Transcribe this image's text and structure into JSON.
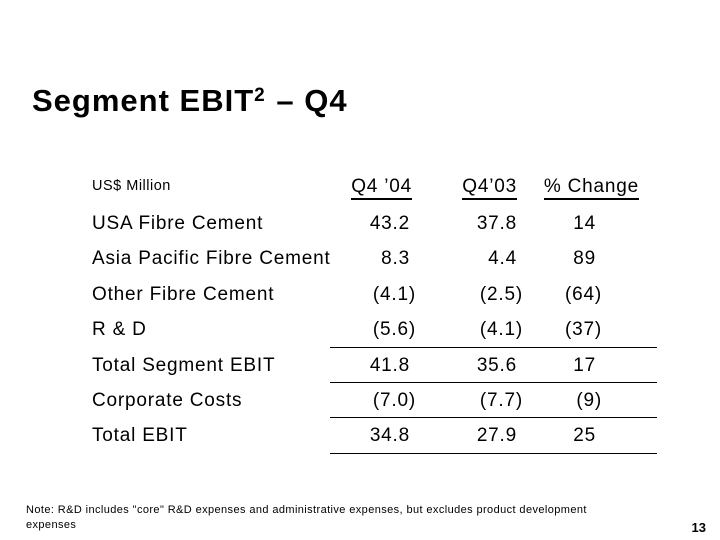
{
  "slide": {
    "title": {
      "prefix": "Segment EBIT",
      "superscript": "2",
      "suffix": "– Q4"
    },
    "table": {
      "unit_label": "US$ Million",
      "col_headers": {
        "q4_04": "Q4 ’04",
        "q4_03": "Q4’03",
        "pct_change": "% Change"
      },
      "rows": [
        {
          "label": "USA Fibre Cement",
          "q4_04": "43.2",
          "q4_03": "37.8",
          "pct_change": "14"
        },
        {
          "label": "Asia Pacific Fibre Cement",
          "q4_04": "8.3",
          "q4_03": "4.4",
          "pct_change": "89"
        },
        {
          "label": "Other Fibre Cement",
          "q4_04": "(4.1)",
          "q4_03": "(2.5)",
          "pct_change": "(64)"
        },
        {
          "label": "R & D",
          "q4_04": "(5.6)",
          "q4_03": "(4.1)",
          "pct_change": "(37)"
        },
        {
          "label": "Total Segment EBIT",
          "q4_04": "41.8",
          "q4_03": "35.6",
          "pct_change": "17"
        },
        {
          "label": "Corporate Costs",
          "q4_04": "(7.0)",
          "q4_03": "(7.7)",
          "pct_change": "(9)"
        },
        {
          "label": "Total EBIT",
          "q4_04": "34.8",
          "q4_03": "27.9",
          "pct_change": "25"
        }
      ]
    },
    "note": "Note: R&D includes \"core\" R&D expenses and administrative expenses, but excludes product development expenses",
    "page_number": "13",
    "colors": {
      "text": "#000000",
      "background": "#ffffff"
    }
  }
}
